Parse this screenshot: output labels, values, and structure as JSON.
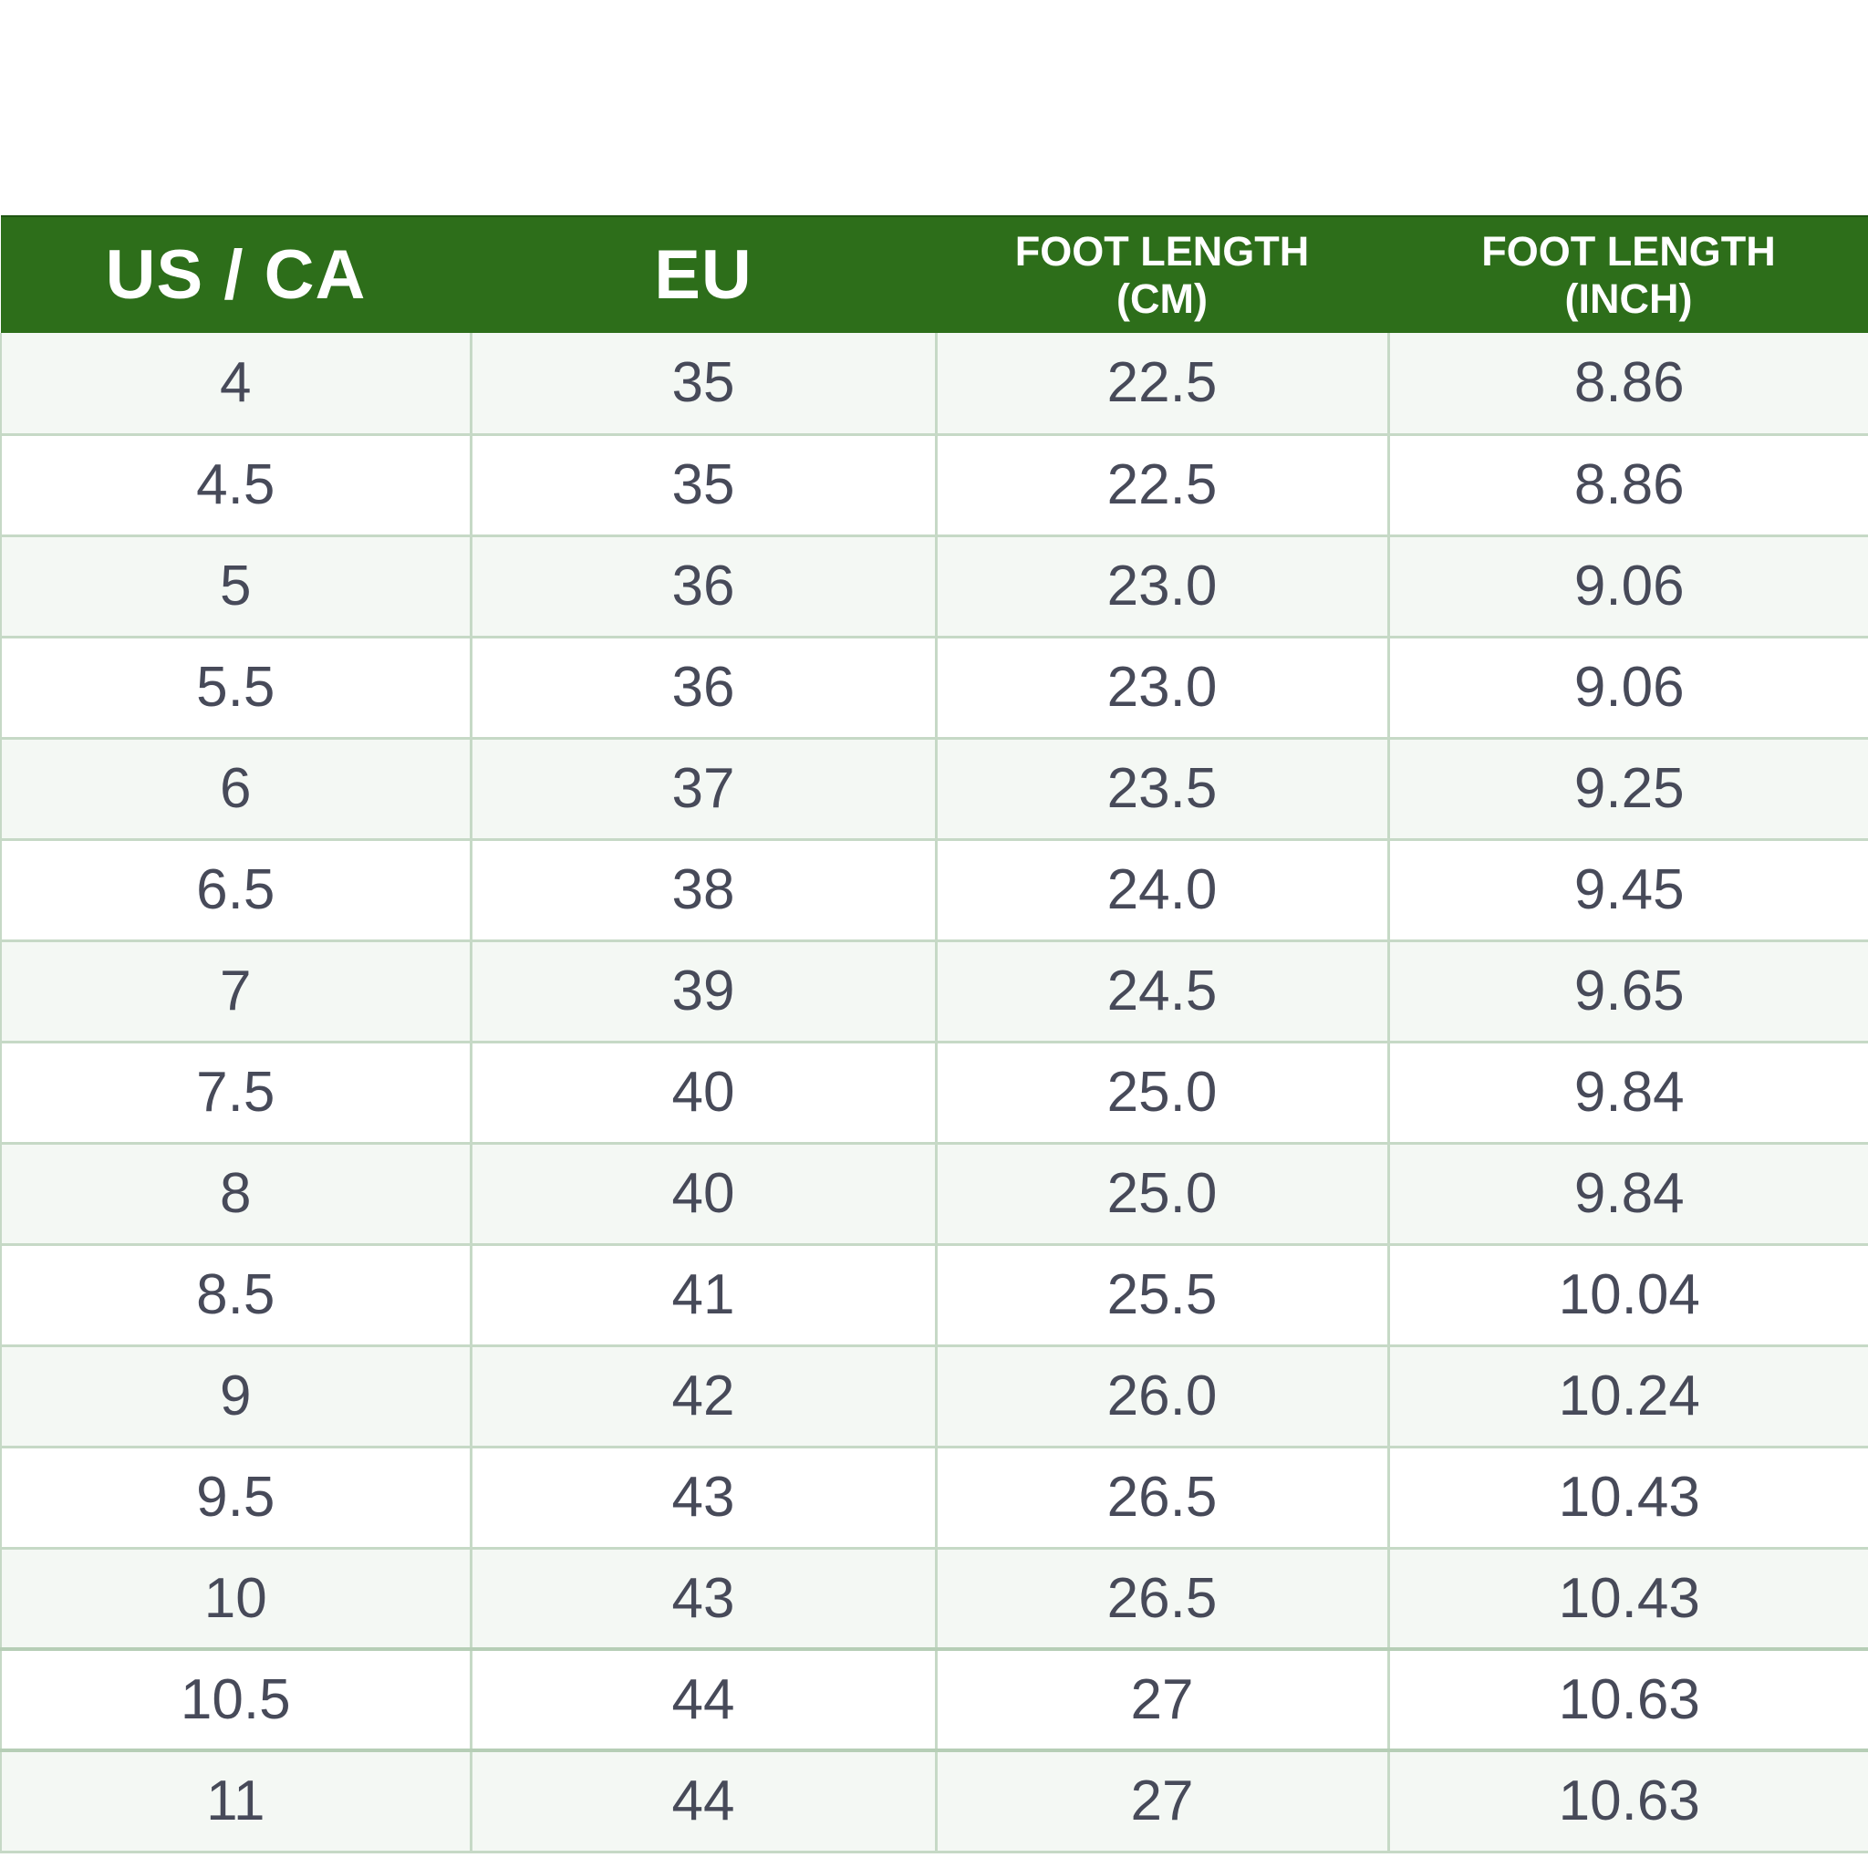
{
  "size_chart": {
    "colors": {
      "header_bg": "#2d6e1a",
      "header_text": "#ffffff",
      "body_text": "#474a59",
      "grid_line": "#c6d9c6"
    },
    "headers": {
      "us_ca": "US / CA",
      "eu": "EU",
      "cm_line1": "FOOT LENGTH",
      "cm_line2": "(CM)",
      "inch_line1": "FOOT LENGTH",
      "inch_line2": "(INCH)"
    },
    "rows": [
      {
        "us": "4",
        "eu": "35",
        "cm": "22.5",
        "inch": "8.86"
      },
      {
        "us": "4.5",
        "eu": "35",
        "cm": "22.5",
        "inch": "8.86"
      },
      {
        "us": "5",
        "eu": "36",
        "cm": "23.0",
        "inch": "9.06"
      },
      {
        "us": "5.5",
        "eu": "36",
        "cm": "23.0",
        "inch": "9.06"
      },
      {
        "us": "6",
        "eu": "37",
        "cm": "23.5",
        "inch": "9.25"
      },
      {
        "us": "6.5",
        "eu": "38",
        "cm": "24.0",
        "inch": "9.45"
      },
      {
        "us": "7",
        "eu": "39",
        "cm": "24.5",
        "inch": "9.65"
      },
      {
        "us": "7.5",
        "eu": "40",
        "cm": "25.0",
        "inch": "9.84"
      },
      {
        "us": "8",
        "eu": "40",
        "cm": "25.0",
        "inch": "9.84"
      },
      {
        "us": "8.5",
        "eu": "41",
        "cm": "25.5",
        "inch": "10.04"
      },
      {
        "us": "9",
        "eu": "42",
        "cm": "26.0",
        "inch": "10.24"
      },
      {
        "us": "9.5",
        "eu": "43",
        "cm": "26.5",
        "inch": "10.43"
      },
      {
        "us": "10",
        "eu": "43",
        "cm": "26.5",
        "inch": "10.43"
      },
      {
        "us": "10.5",
        "eu": "44",
        "cm": "27",
        "inch": "10.63"
      },
      {
        "us": "11",
        "eu": "44",
        "cm": "27",
        "inch": "10.63"
      }
    ]
  }
}
